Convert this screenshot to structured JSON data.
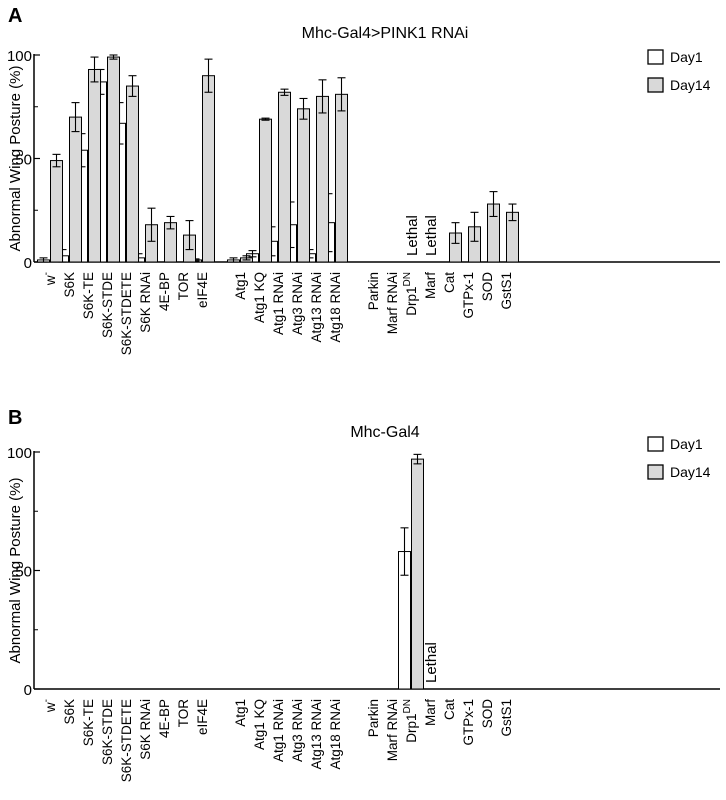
{
  "chart_data": [
    {
      "panel_label": "A",
      "type": "bar",
      "title": "Mhc-Gal4>PINK1 RNAi",
      "ylabel": "Abnormal Wing Posture (%)",
      "ylim": [
        0,
        100
      ],
      "yticks": [
        0,
        50,
        100
      ],
      "legend": [
        "Day1",
        "Day14"
      ],
      "categories": [
        "w-",
        "S6K",
        "S6K-TE",
        "S6K-STDE",
        "S6K-STDETE",
        "S6K RNAi",
        "4E-BP",
        "TOR",
        "eIF4E",
        "Atg1",
        "Atg1 KQ",
        "Atg1 RNAi",
        "Atg3 RNAi",
        "Atg13 RNAi",
        "Atg18 RNAi",
        "Parkin",
        "Marf RNAi",
        "Drp1DN",
        "Marf",
        "Cat",
        "GTPx-1",
        "SOD",
        "GstS1"
      ],
      "series": [
        {
          "name": "Day1",
          "values": [
            1,
            3,
            54,
            87,
            67,
            2,
            null,
            null,
            1,
            1,
            4,
            10,
            18,
            4,
            19,
            null,
            null,
            null,
            null,
            null,
            null,
            null,
            null
          ],
          "errors": [
            1,
            3,
            8,
            6,
            10,
            2,
            null,
            null,
            0.5,
            1,
            1.5,
            7,
            11,
            2,
            14,
            null,
            null,
            null,
            null,
            null,
            null,
            null,
            null
          ]
        },
        {
          "name": "Day14",
          "values": [
            49,
            70,
            93,
            99,
            85,
            18,
            19,
            13,
            90,
            2,
            69,
            82,
            74,
            80,
            81,
            null,
            null,
            null,
            null,
            14,
            17,
            28,
            24
          ],
          "errors": [
            3,
            7,
            6,
            1,
            5,
            8,
            3,
            7,
            8,
            1,
            0.5,
            1.5,
            5,
            8,
            8,
            null,
            null,
            null,
            null,
            5,
            7,
            6,
            4
          ]
        }
      ],
      "annotations": [
        {
          "text": "Lethal",
          "category": "Drp1DN"
        },
        {
          "text": "Lethal",
          "category": "Marf"
        }
      ]
    },
    {
      "panel_label": "B",
      "type": "bar",
      "title": "Mhc-Gal4",
      "ylabel": "Abnormal Wing Posture (%)",
      "ylim": [
        0,
        100
      ],
      "yticks": [
        0,
        50,
        100
      ],
      "legend": [
        "Day1",
        "Day14"
      ],
      "categories": [
        "w-",
        "S6K",
        "S6K-TE",
        "S6K-STDE",
        "S6K-STDETE",
        "S6K RNAi",
        "4E-BP",
        "TOR",
        "eIF4E",
        "Atg1",
        "Atg1 KQ",
        "Atg1 RNAi",
        "Atg3 RNAi",
        "Atg13 RNAi",
        "Atg18 RNAi",
        "Parkin",
        "Marf RNAi",
        "Drp1DN",
        "Marf",
        "Cat",
        "GTPx-1",
        "SOD",
        "GstS1"
      ],
      "series": [
        {
          "name": "Day1",
          "values": [
            null,
            null,
            null,
            null,
            null,
            null,
            null,
            null,
            null,
            null,
            null,
            null,
            null,
            null,
            null,
            null,
            null,
            58,
            null,
            null,
            null,
            null,
            null
          ],
          "errors": [
            null,
            null,
            null,
            null,
            null,
            null,
            null,
            null,
            null,
            null,
            null,
            null,
            null,
            null,
            null,
            null,
            null,
            10,
            null,
            null,
            null,
            null,
            null
          ]
        },
        {
          "name": "Day14",
          "values": [
            null,
            null,
            null,
            null,
            null,
            null,
            null,
            null,
            null,
            null,
            null,
            null,
            null,
            null,
            null,
            null,
            null,
            97,
            null,
            null,
            null,
            null,
            null
          ],
          "errors": [
            null,
            null,
            null,
            null,
            null,
            null,
            null,
            null,
            null,
            null,
            null,
            null,
            null,
            null,
            null,
            null,
            null,
            2,
            null,
            null,
            null,
            null,
            null
          ]
        }
      ],
      "annotations": [
        {
          "text": "Lethal",
          "category": "Marf"
        }
      ]
    }
  ]
}
